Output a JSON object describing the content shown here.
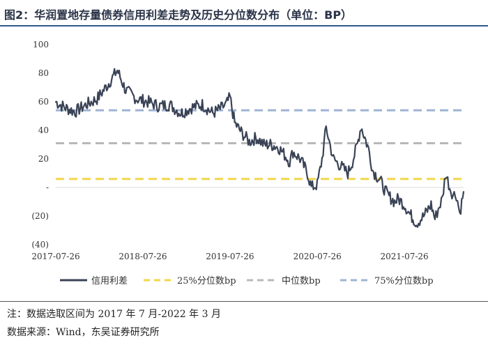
{
  "header": {
    "title": "图2：华润置地存量债券信用利差走势及历史分位数分布（单位：BP）"
  },
  "footer": {
    "note": "注：数据选取区间为 2017 年 7 月-2022 年 3 月",
    "source": "数据来源：Wind，东吴证券研究所"
  },
  "colors": {
    "spread": "#3a4356",
    "p25": "#f2d64b",
    "median": "#b8b8b8",
    "p75": "#9eb4d2"
  },
  "chart_data": {
    "type": "line",
    "title": "华润置地存量债券信用利差走势及历史分位数分布（单位：BP）",
    "ylabel": "BP",
    "ylim": [
      -40,
      100
    ],
    "yticks": [
      100,
      80,
      60,
      40,
      20,
      0,
      -20,
      -40
    ],
    "ytick_labels": [
      "100",
      "80",
      "60",
      "40",
      "20",
      "-",
      "(20)",
      "(40)"
    ],
    "x_range": [
      "2017-07-26",
      "2022-03-31"
    ],
    "xtick_labels": [
      "2017-07-26",
      "2018-07-26",
      "2019-07-26",
      "2020-07-26",
      "2021-07-26"
    ],
    "legend_position": "bottom",
    "series": [
      {
        "name": "信用利差",
        "style": "solid",
        "x": [
          "2017-07-26",
          "2017-09-01",
          "2017-10-15",
          "2017-12-01",
          "2018-01-15",
          "2018-03-01",
          "2018-04-10",
          "2018-05-15",
          "2018-07-01",
          "2018-08-15",
          "2018-10-01",
          "2018-11-15",
          "2019-01-01",
          "2019-02-15",
          "2019-04-01",
          "2019-05-15",
          "2019-06-15",
          "2019-07-10",
          "2019-07-26",
          "2019-08-15",
          "2019-09-15",
          "2019-10-15",
          "2019-11-15",
          "2019-12-15",
          "2020-01-15",
          "2020-02-15",
          "2020-03-15",
          "2020-04-01",
          "2020-04-15",
          "2020-05-15",
          "2020-06-15",
          "2020-07-01",
          "2020-07-26",
          "2020-08-15",
          "2020-09-01",
          "2020-10-01",
          "2020-11-01",
          "2020-12-01",
          "2020-12-20",
          "2021-01-10",
          "2021-01-25",
          "2021-02-10",
          "2021-03-01",
          "2021-03-15",
          "2021-04-15",
          "2021-05-15",
          "2021-06-15",
          "2021-07-01",
          "2021-07-26",
          "2021-08-15",
          "2021-09-15",
          "2021-10-15",
          "2021-11-15",
          "2021-12-01",
          "2021-12-15",
          "2022-01-01",
          "2022-01-15",
          "2022-02-01",
          "2022-02-15",
          "2022-03-01",
          "2022-03-15",
          "2022-03-31"
        ],
        "values": [
          60,
          56,
          53,
          58,
          62,
          72,
          82,
          68,
          62,
          60,
          57,
          58,
          52,
          56,
          58,
          52,
          55,
          58,
          63,
          45,
          38,
          32,
          35,
          30,
          30,
          28,
          22,
          18,
          25,
          20,
          10,
          0,
          2,
          20,
          42,
          20,
          15,
          10,
          18,
          30,
          43,
          35,
          25,
          12,
          5,
          -5,
          -10,
          -8,
          -12,
          -18,
          -25,
          -20,
          -12,
          -22,
          -15,
          -8,
          10,
          0,
          -5,
          -5,
          -18,
          -3
        ]
      },
      {
        "name": "25%分位数bp",
        "style": "dashed",
        "value": 6
      },
      {
        "name": "中位数bp",
        "style": "dashed",
        "value": 31
      },
      {
        "name": "75%分位数bp",
        "style": "dashed",
        "value": 54
      }
    ]
  }
}
